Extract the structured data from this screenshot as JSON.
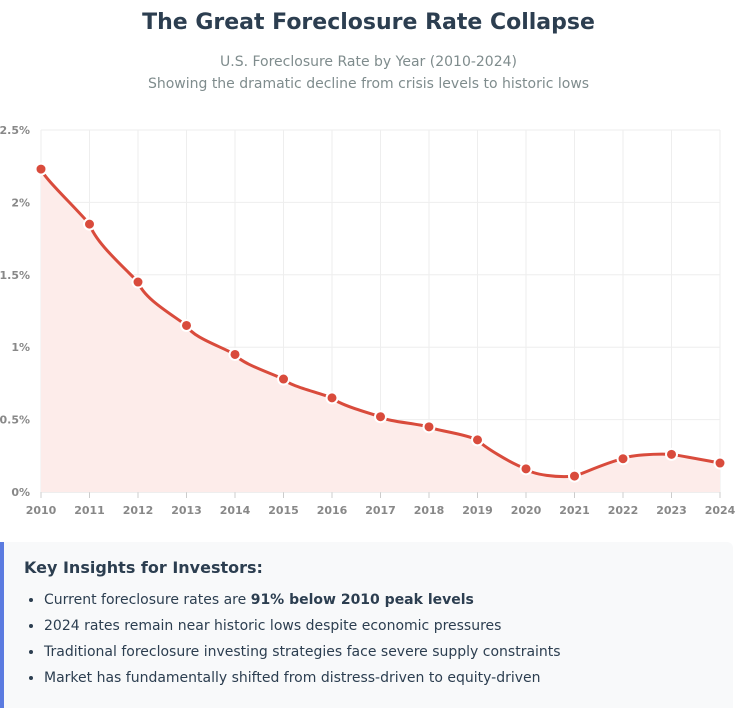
{
  "header": {
    "title": "The Great Foreclosure Rate Collapse",
    "subtitle_line1": "U.S. Foreclosure Rate by Year (2010-2024)",
    "subtitle_line2": "Showing the dramatic decline from crisis levels to historic lows"
  },
  "chart_data": {
    "type": "line",
    "title": "The Great Foreclosure Rate Collapse",
    "subtitle": "U.S. Foreclosure Rate by Year (2010-2024)",
    "xlabel": "",
    "ylabel": "",
    "categories": [
      "2010",
      "2011",
      "2012",
      "2013",
      "2014",
      "2015",
      "2016",
      "2017",
      "2018",
      "2019",
      "2020",
      "2021",
      "2022",
      "2023",
      "2024"
    ],
    "values": [
      2.23,
      1.85,
      1.45,
      1.15,
      0.95,
      0.78,
      0.65,
      0.52,
      0.45,
      0.36,
      0.16,
      0.11,
      0.23,
      0.26,
      0.2
    ],
    "ylim": [
      0,
      2.5
    ],
    "yticks": [
      0,
      0.5,
      1,
      1.5,
      2,
      2.5
    ],
    "ytick_labels": [
      "0%",
      "0.5%",
      "1%",
      "1.5%",
      "2%",
      "2.5%"
    ],
    "grid": true,
    "fill": true,
    "colors": {
      "line": "#d94b3c",
      "fill": "#fdecea",
      "grid": "#eeeeee",
      "tick": "#888888"
    }
  },
  "insights": {
    "heading": "Key Insights for Investors:",
    "item1_prefix": "Current foreclosure rates are ",
    "item1_bold": "91% below 2010 peak levels",
    "item2": "2024 rates remain near historic lows despite economic pressures",
    "item3": "Traditional foreclosure investing strategies face severe supply constraints",
    "item4": "Market has fundamentally shifted from distress-driven to equity-driven",
    "accent_color": "#5b7be0"
  }
}
